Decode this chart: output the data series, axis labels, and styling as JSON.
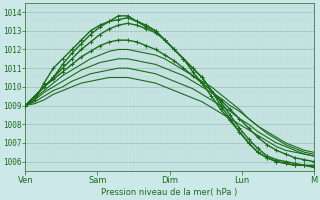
{
  "title": "Pression niveau de la mer( hPa )",
  "bg_color": "#cce8e8",
  "grid_minor_color": "#b8d8d0",
  "grid_major_color": "#99c4b8",
  "line_color": "#1a6b1a",
  "ylim": [
    1005.5,
    1014.5
  ],
  "yticks": [
    1006,
    1007,
    1008,
    1009,
    1010,
    1011,
    1012,
    1013,
    1014
  ],
  "xtick_labels": [
    "Ven",
    "Sam",
    "Dim",
    "Lun",
    "M"
  ],
  "xtick_positions": [
    0,
    24,
    48,
    72,
    96
  ],
  "x_total": 96,
  "series": [
    {
      "y": [
        1009.0,
        1009.3,
        1010.2,
        1011.0,
        1011.5,
        1012.0,
        1012.5,
        1013.0,
        1013.3,
        1013.5,
        1013.8,
        1013.8,
        1013.5,
        1013.2,
        1013.0,
        1012.5,
        1012.0,
        1011.5,
        1010.8,
        1010.2,
        1009.5,
        1008.8,
        1008.2,
        1007.6,
        1007.0,
        1006.5,
        1006.2,
        1006.0,
        1005.9,
        1005.8,
        1005.8,
        1005.7
      ],
      "marker": true,
      "lw": 1.0
    },
    {
      "y": [
        1009.0,
        1009.5,
        1010.0,
        1010.5,
        1011.2,
        1011.8,
        1012.3,
        1012.8,
        1013.2,
        1013.5,
        1013.6,
        1013.7,
        1013.5,
        1013.3,
        1013.0,
        1012.5,
        1012.0,
        1011.5,
        1011.0,
        1010.5,
        1009.8,
        1009.0,
        1008.3,
        1007.6,
        1007.0,
        1006.5,
        1006.2,
        1006.0,
        1005.9,
        1005.8,
        1005.8,
        1005.7
      ],
      "marker": true,
      "lw": 1.0
    },
    {
      "y": [
        1009.0,
        1009.5,
        1010.0,
        1010.5,
        1011.0,
        1011.5,
        1012.0,
        1012.4,
        1012.8,
        1013.1,
        1013.3,
        1013.4,
        1013.3,
        1013.1,
        1012.9,
        1012.5,
        1012.0,
        1011.5,
        1011.0,
        1010.5,
        1009.8,
        1009.2,
        1008.5,
        1007.8,
        1007.2,
        1006.7,
        1006.3,
        1006.1,
        1006.0,
        1005.9,
        1005.8,
        1005.8
      ],
      "marker": true,
      "lw": 1.0
    },
    {
      "y": [
        1009.0,
        1009.5,
        1010.0,
        1010.4,
        1010.8,
        1011.2,
        1011.6,
        1011.9,
        1012.2,
        1012.4,
        1012.5,
        1012.5,
        1012.4,
        1012.2,
        1012.0,
        1011.7,
        1011.4,
        1011.0,
        1010.6,
        1010.2,
        1009.8,
        1009.3,
        1008.8,
        1008.3,
        1007.8,
        1007.3,
        1006.9,
        1006.6,
        1006.4,
        1006.2,
        1006.1,
        1006.0
      ],
      "marker": true,
      "lw": 1.0
    },
    {
      "y": [
        1009.0,
        1009.4,
        1009.8,
        1010.2,
        1010.6,
        1010.9,
        1011.2,
        1011.5,
        1011.7,
        1011.9,
        1012.0,
        1012.0,
        1011.9,
        1011.8,
        1011.7,
        1011.5,
        1011.2,
        1010.9,
        1010.6,
        1010.3,
        1010.0,
        1009.6,
        1009.2,
        1008.8,
        1008.3,
        1007.9,
        1007.5,
        1007.2,
        1006.9,
        1006.7,
        1006.5,
        1006.4
      ],
      "marker": false,
      "lw": 0.8
    },
    {
      "y": [
        1009.0,
        1009.3,
        1009.7,
        1010.0,
        1010.3,
        1010.6,
        1010.9,
        1011.1,
        1011.3,
        1011.4,
        1011.5,
        1011.5,
        1011.4,
        1011.3,
        1011.2,
        1011.0,
        1010.8,
        1010.6,
        1010.3,
        1010.0,
        1009.7,
        1009.4,
        1009.0,
        1008.7,
        1008.3,
        1007.9,
        1007.6,
        1007.3,
        1007.0,
        1006.8,
        1006.6,
        1006.5
      ],
      "marker": false,
      "lw": 0.8
    },
    {
      "y": [
        1009.0,
        1009.2,
        1009.5,
        1009.8,
        1010.0,
        1010.3,
        1010.5,
        1010.7,
        1010.8,
        1010.9,
        1011.0,
        1011.0,
        1010.9,
        1010.8,
        1010.7,
        1010.5,
        1010.3,
        1010.1,
        1009.9,
        1009.6,
        1009.3,
        1009.0,
        1008.7,
        1008.3,
        1008.0,
        1007.6,
        1007.3,
        1007.0,
        1006.8,
        1006.6,
        1006.4,
        1006.3
      ],
      "marker": false,
      "lw": 0.8
    },
    {
      "y": [
        1009.0,
        1009.1,
        1009.3,
        1009.6,
        1009.8,
        1010.0,
        1010.2,
        1010.3,
        1010.4,
        1010.5,
        1010.5,
        1010.5,
        1010.4,
        1010.3,
        1010.2,
        1010.0,
        1009.8,
        1009.6,
        1009.4,
        1009.2,
        1008.9,
        1008.6,
        1008.3,
        1008.0,
        1007.7,
        1007.4,
        1007.1,
        1006.8,
        1006.6,
        1006.5,
        1006.4,
        1006.3
      ],
      "marker": false,
      "lw": 0.8
    }
  ]
}
